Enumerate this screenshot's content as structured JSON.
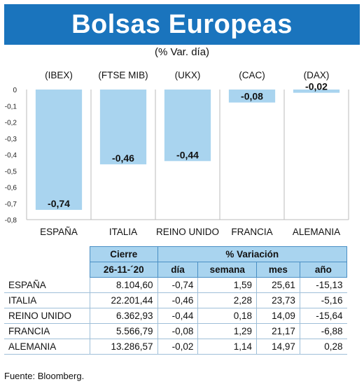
{
  "header": {
    "title": "Bolsas Europeas",
    "subtitle": "(% Var. día)"
  },
  "chart_data": {
    "type": "bar",
    "categories": [
      "ESPAÑA",
      "ITALIA",
      "REINO UNIDO",
      "FRANCIA",
      "ALEMANIA"
    ],
    "index_labels": [
      "(IBEX)",
      "(FTSE MIB)",
      "(UKX)",
      "(CAC)",
      "(DAX)"
    ],
    "values": [
      -0.74,
      -0.46,
      -0.44,
      -0.08,
      -0.02
    ],
    "value_labels": [
      "-0,74",
      "-0,46",
      "-0,44",
      "-0,08",
      "-0,02"
    ],
    "ylim": [
      -0.8,
      0
    ],
    "y_ticks": [
      "0",
      "-0,1",
      "-0,2",
      "-0,3",
      "-0,4",
      "-0,5",
      "-0,6",
      "-0,7",
      "-0,8"
    ],
    "grid": true,
    "bar_color": "#a9d4ef"
  },
  "table": {
    "header_cierre": "Cierre",
    "header_variacion": "% Variación",
    "date": "26-11-´20",
    "columns": [
      "día",
      "semana",
      "mes",
      "año"
    ],
    "rows": [
      {
        "name": "ESPAÑA",
        "cierre": "8.104,60",
        "dia": "-0,74",
        "semana": "1,59",
        "mes": "25,61",
        "ano": "-15,13"
      },
      {
        "name": "ITALIA",
        "cierre": "22.201,44",
        "dia": "-0,46",
        "semana": "2,28",
        "mes": "23,73",
        "ano": "-5,16"
      },
      {
        "name": "REINO UNIDO",
        "cierre": "6.362,93",
        "dia": "-0,44",
        "semana": "0,18",
        "mes": "14,09",
        "ano": "-15,64"
      },
      {
        "name": "FRANCIA",
        "cierre": "5.566,79",
        "dia": "-0,08",
        "semana": "1,29",
        "mes": "21,17",
        "ano": "-6,88"
      },
      {
        "name": "ALEMANIA",
        "cierre": "13.286,57",
        "dia": "-0,02",
        "semana": "1,14",
        "mes": "14,97",
        "ano": "0,28"
      }
    ]
  },
  "source": "Fuente: Bloomberg.",
  "colors": {
    "title_bg": "#1a74bd",
    "header_bg": "#a9d4ef",
    "grid": "#bbbbbb"
  }
}
